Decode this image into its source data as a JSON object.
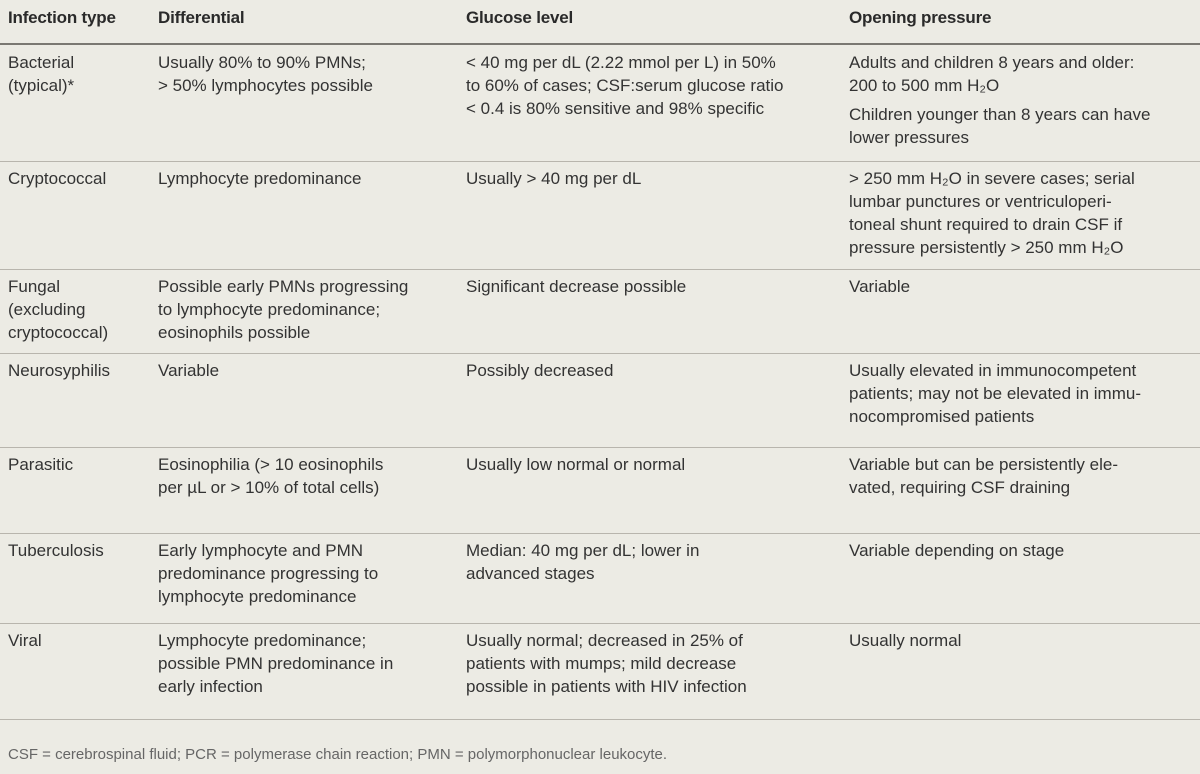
{
  "table": {
    "header": [
      "Infection type",
      "Differential",
      "Glucose level",
      "Opening pressure"
    ],
    "rows": [
      [
        [
          [
            "Bacterial",
            "(typical)*"
          ]
        ],
        [
          [
            "Usually 80% to 90% PMNs;",
            "> 50% lymphocytes possible"
          ]
        ],
        [
          [
            "< 40 mg per dL (2.22 mmol per L) in 50%",
            "to 60% of cases; CSF:serum glucose ratio",
            "< 0.4 is 80% sensitive and 98% specific"
          ]
        ],
        [
          [
            "Adults and children 8 years and older:",
            "200 to 500 mm H₂O"
          ],
          [
            "Children younger than 8 years can have",
            "lower pressures"
          ]
        ]
      ],
      [
        [
          [
            "Cryptococcal"
          ]
        ],
        [
          [
            "Lymphocyte predominance"
          ]
        ],
        [
          [
            "Usually > 40 mg per dL"
          ]
        ],
        [
          [
            "> 250 mm H₂O in severe cases; serial",
            "lumbar punctures or ventriculoperi-",
            "toneal shunt required to drain CSF if",
            "pressure persistently > 250 mm H₂O"
          ]
        ]
      ],
      [
        [
          [
            "Fungal",
            "(excluding",
            "cryptococcal)"
          ]
        ],
        [
          [
            "Possible early PMNs progressing",
            "to lymphocyte predominance;",
            "eosinophils possible"
          ]
        ],
        [
          [
            "Significant decrease possible"
          ]
        ],
        [
          [
            "Variable"
          ]
        ]
      ],
      [
        [
          [
            "Neurosyphilis"
          ]
        ],
        [
          [
            "Variable"
          ]
        ],
        [
          [
            "Possibly decreased"
          ]
        ],
        [
          [
            "Usually elevated in immunocompetent",
            "patients; may not be elevated in immu-",
            "nocompromised patients"
          ]
        ]
      ],
      [
        [
          [
            "Parasitic"
          ]
        ],
        [
          [
            "Eosinophilia (> 10 eosinophils",
            "per µL or > 10% of total cells)"
          ]
        ],
        [
          [
            "Usually low normal or normal"
          ]
        ],
        [
          [
            "Variable but can be persistently ele-",
            "vated, requiring CSF draining"
          ]
        ]
      ],
      [
        [
          [
            "Tuberculosis"
          ]
        ],
        [
          [
            "Early lymphocyte and PMN",
            "predominance progressing to",
            "lymphocyte predominance"
          ]
        ],
        [
          [
            "Median: 40 mg per dL; lower in",
            "advanced stages"
          ]
        ],
        [
          [
            "Variable depending on stage"
          ]
        ]
      ],
      [
        [
          [
            "Viral"
          ]
        ],
        [
          [
            "Lymphocyte predominance;",
            "possible PMN predominance in",
            "early infection"
          ]
        ],
        [
          [
            "Usually normal; decreased in 25% of",
            "patients with mumps; mild decrease",
            "possible in patients with HIV infection"
          ]
        ],
        [
          [
            "Usually normal"
          ]
        ]
      ]
    ]
  },
  "footnote": "CSF = cerebrospinal fluid; PCR = polymerase chain reaction; PMN = polymorphonuclear leukocyte."
}
